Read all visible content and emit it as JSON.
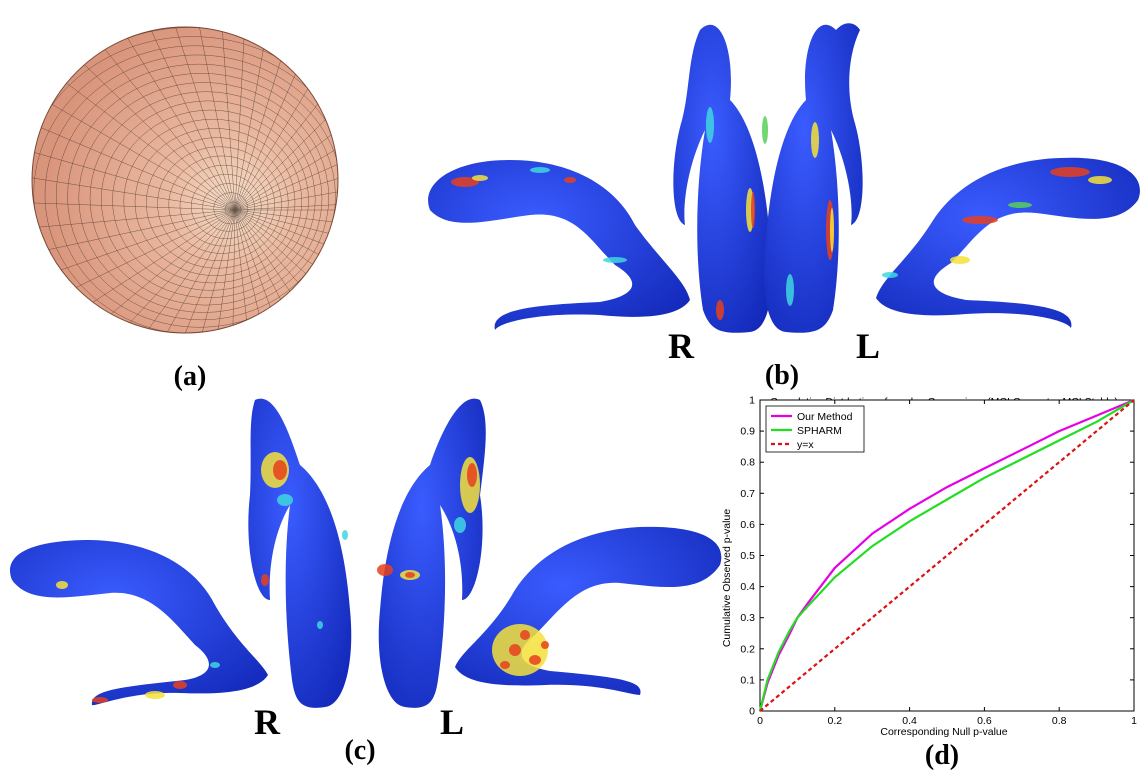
{
  "panels": {
    "a": {
      "label": "(a)"
    },
    "b": {
      "label": "(b)",
      "side_left": "R",
      "side_right": "L"
    },
    "c": {
      "label": "(c)",
      "side_left": "R",
      "side_right": "L"
    },
    "d": {
      "label": "(d)"
    }
  },
  "colors": {
    "sphere_base": "#d9957c",
    "sphere_light": "#f6dcc6",
    "surface_blue": "#1f3fe0",
    "hot_red": "#e8401c",
    "hot_yellow": "#f4e23a",
    "hot_cyan": "#3fd6e0",
    "hot_green": "#58d058"
  },
  "chart_data": {
    "type": "line",
    "title": "Cumulative Distrbution of p-value Comparison (MCI Converter-MCI Stable)",
    "xlabel": "Corresponding Null p-value",
    "ylabel": "Cumulative Observed p-value",
    "xlim": [
      0,
      1
    ],
    "ylim": [
      0,
      1
    ],
    "xticks": [
      0,
      0.2,
      0.4,
      0.6,
      0.8,
      1
    ],
    "xtick_labels": [
      "0",
      "0.2",
      "0.4",
      "0.6",
      "0.8",
      "1"
    ],
    "yticks": [
      0,
      0.1,
      0.2,
      0.3,
      0.4,
      0.5,
      0.6,
      0.7,
      0.8,
      0.9,
      1
    ],
    "ytick_labels": [
      "0",
      "0.1",
      "0.2",
      "0.3",
      "0.4",
      "0.5",
      "0.6",
      "0.7",
      "0.8",
      "0.9",
      "1"
    ],
    "legend_position": "top-left",
    "grid": false,
    "series": [
      {
        "name": "Our Method",
        "color": "#e600e6",
        "dash": "solid",
        "x": [
          0,
          0.02,
          0.05,
          0.08,
          0.1,
          0.13,
          0.2,
          0.3,
          0.4,
          0.5,
          0.6,
          0.7,
          0.8,
          0.9,
          1
        ],
        "y": [
          0,
          0.09,
          0.18,
          0.25,
          0.3,
          0.35,
          0.46,
          0.57,
          0.65,
          0.72,
          0.78,
          0.84,
          0.9,
          0.95,
          1
        ]
      },
      {
        "name": "SPHARM",
        "color": "#22dd22",
        "dash": "solid",
        "x": [
          0,
          0.02,
          0.05,
          0.08,
          0.1,
          0.13,
          0.2,
          0.3,
          0.4,
          0.5,
          0.6,
          0.7,
          0.8,
          0.9,
          1
        ],
        "y": [
          0,
          0.1,
          0.19,
          0.26,
          0.3,
          0.34,
          0.43,
          0.53,
          0.61,
          0.68,
          0.75,
          0.81,
          0.87,
          0.93,
          1
        ]
      },
      {
        "name": "y=x",
        "color": "#dd1111",
        "dash": "dashed",
        "x": [
          0,
          1
        ],
        "y": [
          0,
          1
        ]
      }
    ]
  }
}
